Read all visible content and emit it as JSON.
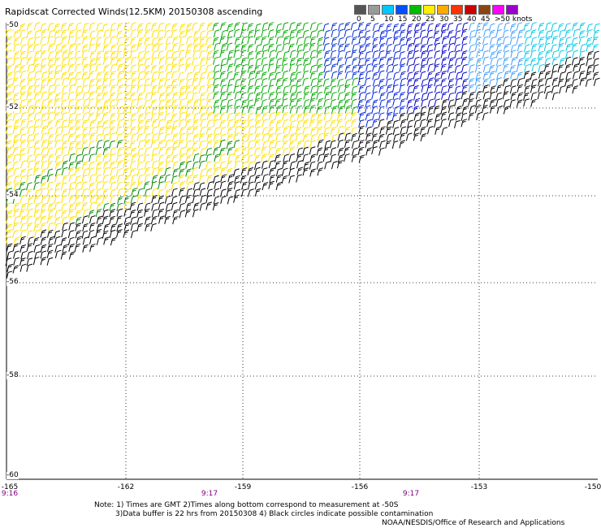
{
  "title": "Rapidscat Corrected Winds(12.5KM) 20150308 ascending",
  "legend": {
    "bins": [
      {
        "label": "0",
        "color": "#555555"
      },
      {
        "label": "5",
        "color": "#9a9a9a"
      },
      {
        "label": "10",
        "color": "#00c8ff"
      },
      {
        "label": "15",
        "color": "#0050ff"
      },
      {
        "label": "20",
        "color": "#00bb00"
      },
      {
        "label": "25",
        "color": "#ffee00"
      },
      {
        "label": "30",
        "color": "#ffaa00"
      },
      {
        "label": "35",
        "color": "#ff3300"
      },
      {
        "label": "40",
        "color": "#cc0000"
      },
      {
        "label": "45",
        "color": "#8b4513"
      },
      {
        "label": ">50 knots",
        "color": "#ff00ff"
      },
      {
        "label": "",
        "color": "#9900cc"
      }
    ]
  },
  "grid": {
    "lat_labels": [
      "-50",
      "-52",
      "-54",
      "-56",
      "-58",
      "-60"
    ],
    "lon_labels": [
      "-165",
      "-162",
      "-159",
      "-156",
      "-153",
      "-150"
    ],
    "time_labels": [
      "9:16",
      "9:17",
      "9:17"
    ]
  },
  "notes": [
    "Note: 1) Times are GMT 2)Times along bottom correspond to measurement at -50S",
    "3)Data buffer is 22 hrs from 20150308 4) Black circles indicate possible contamination",
    "NOAA/NESDIS/Office of Research and Applications"
  ]
}
